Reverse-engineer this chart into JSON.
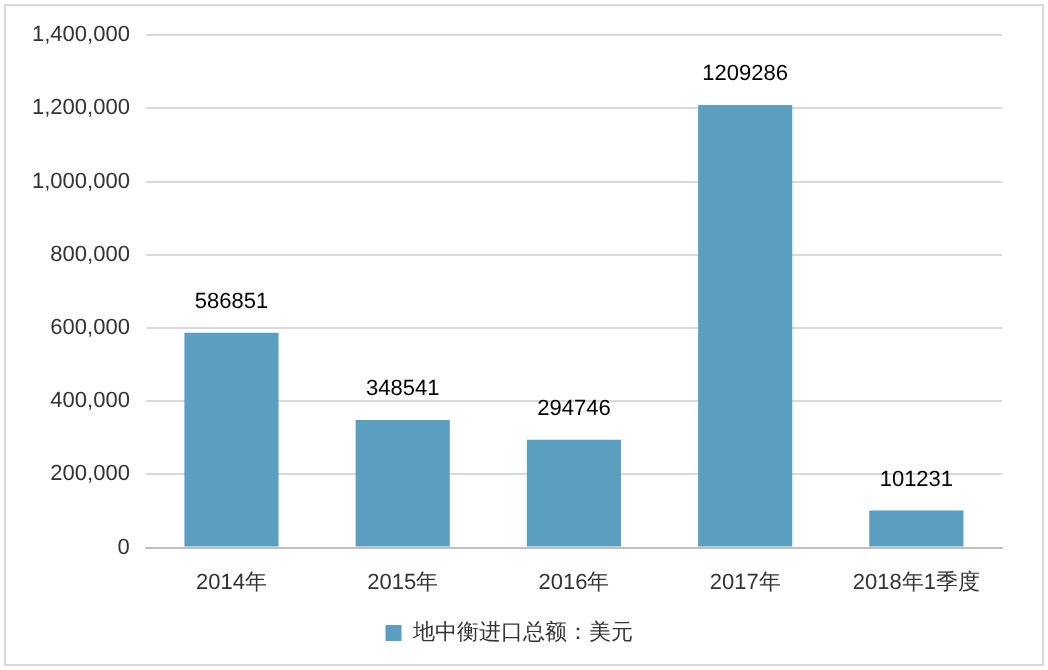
{
  "chart_data": {
    "type": "bar",
    "categories": [
      "2014年",
      "2015年",
      "2016年",
      "2017年",
      "2018年1季度"
    ],
    "series": [
      {
        "name": "地中衡进口总额：美元",
        "color": "#5b9fc0",
        "values": [
          586851,
          348541,
          294746,
          1209286,
          101231
        ]
      }
    ],
    "ylim": [
      0,
      1400000
    ],
    "yticks": [
      0,
      {
        "value": 200000,
        "label": "200,000"
      },
      {
        "value": 400000,
        "label": "400,000"
      },
      {
        "value": 600000,
        "label": "600,000"
      },
      {
        "value": 800000,
        "label": "800,000"
      },
      {
        "value": 1000000,
        "label": "1,000,000"
      },
      {
        "value": 1200000,
        "label": "1,200,000"
      },
      {
        "value": 1400000,
        "label": "1,400,000"
      }
    ],
    "grid": "y",
    "legend": "bottom",
    "data_labels": true
  }
}
